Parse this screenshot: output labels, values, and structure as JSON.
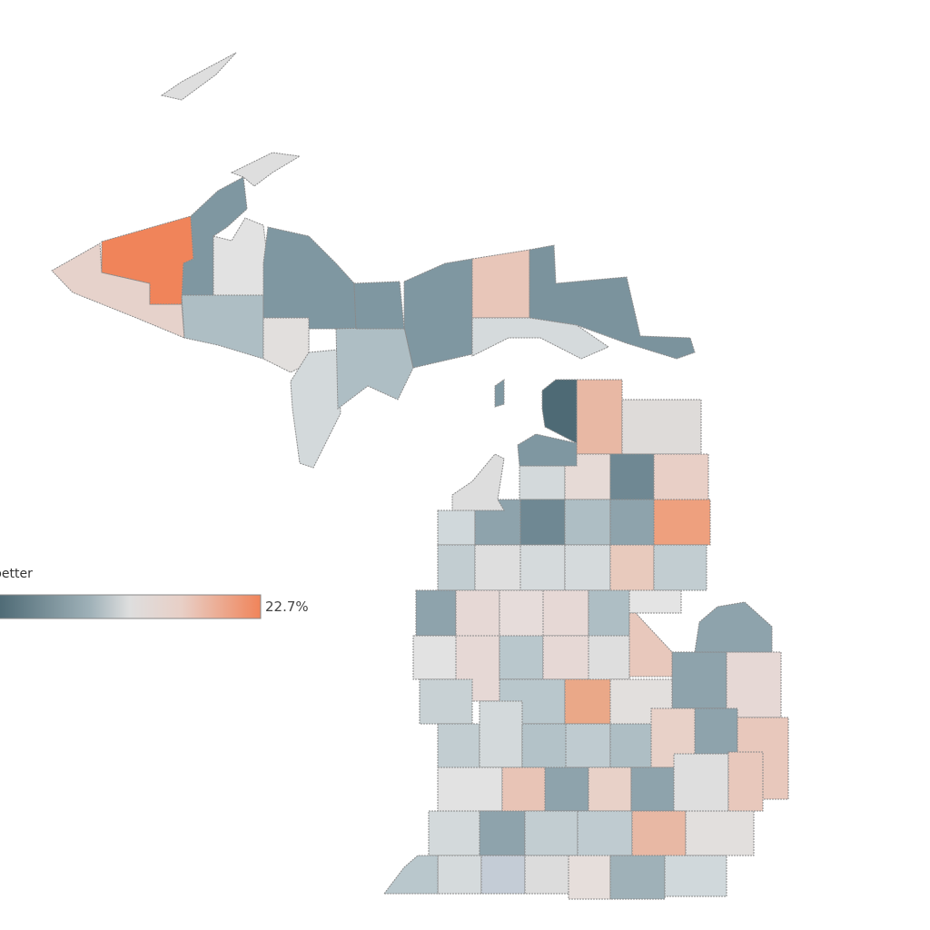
{
  "legend": {
    "title": "better",
    "max_label": "22.7%"
  }
}
